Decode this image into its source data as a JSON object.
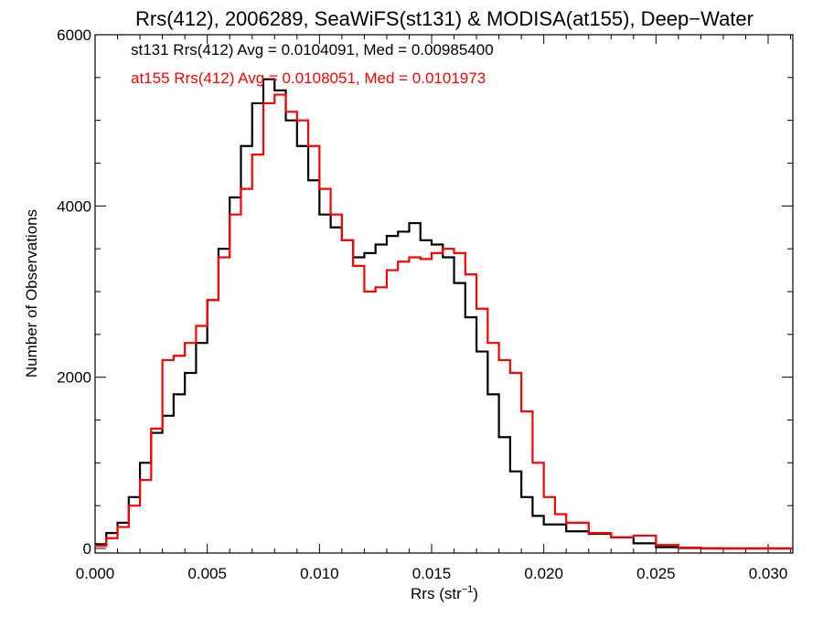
{
  "chart_data": {
    "type": "line",
    "title": "Rrs(412), 2006289, SeaWiFS(st131) & MODISA(at155), Deep−Water",
    "xlabel_main": "Rrs (str",
    "xlabel_sup": "−1",
    "xlabel_close": ")",
    "ylabel": "Number of Observations",
    "xlim": [
      0.0,
      0.0311
    ],
    "ylim": [
      0,
      6000
    ],
    "xticks": [
      0.0,
      0.005,
      0.01,
      0.015,
      0.02,
      0.025,
      0.03
    ],
    "xtick_labels": [
      "0.000",
      "0.005",
      "0.010",
      "0.015",
      "0.020",
      "0.025",
      "0.030"
    ],
    "yticks": [
      0,
      2000,
      4000,
      6000
    ],
    "ytick_labels": [
      "0",
      "2000",
      "4000",
      "6000"
    ],
    "grid": false,
    "legend_placement": "top-left",
    "series": [
      {
        "name": "st131 Rrs(412) Avg = 0.0104091, Med = 0.00985400",
        "color": "#000000",
        "x": [
          0.0,
          0.0005,
          0.001,
          0.0015,
          0.002,
          0.0025,
          0.003,
          0.0035,
          0.004,
          0.0045,
          0.005,
          0.0055,
          0.006,
          0.0065,
          0.007,
          0.0075,
          0.008,
          0.0085,
          0.009,
          0.0095,
          0.01,
          0.0105,
          0.011,
          0.0115,
          0.012,
          0.0125,
          0.013,
          0.0135,
          0.014,
          0.0145,
          0.015,
          0.0155,
          0.016,
          0.0165,
          0.017,
          0.0175,
          0.018,
          0.0185,
          0.019,
          0.0195,
          0.02,
          0.021,
          0.022,
          0.023,
          0.024,
          0.025,
          0.026,
          0.027,
          0.028,
          0.029,
          0.0311
        ],
        "y": [
          50,
          180,
          300,
          600,
          1000,
          1350,
          1550,
          1800,
          2050,
          2400,
          2900,
          3500,
          4100,
          4700,
          5200,
          5480,
          5350,
          5000,
          4700,
          4300,
          3900,
          3750,
          3600,
          3400,
          3450,
          3550,
          3650,
          3700,
          3800,
          3600,
          3550,
          3400,
          3100,
          2700,
          2300,
          1800,
          1300,
          900,
          600,
          380,
          280,
          200,
          170,
          130,
          60,
          15,
          5,
          0,
          0,
          0,
          0
        ]
      },
      {
        "name": "at155 Rrs(412) Avg = 0.0108051, Med = 0.0101973",
        "color": "#ff0000",
        "x": [
          0.0,
          0.0005,
          0.001,
          0.0015,
          0.002,
          0.0025,
          0.003,
          0.0035,
          0.004,
          0.0045,
          0.005,
          0.0055,
          0.006,
          0.0065,
          0.007,
          0.0075,
          0.008,
          0.0085,
          0.009,
          0.0095,
          0.01,
          0.0105,
          0.011,
          0.0115,
          0.012,
          0.0125,
          0.013,
          0.0135,
          0.014,
          0.0145,
          0.015,
          0.0155,
          0.016,
          0.0165,
          0.017,
          0.0175,
          0.018,
          0.0185,
          0.019,
          0.0195,
          0.02,
          0.0205,
          0.021,
          0.022,
          0.023,
          0.024,
          0.025,
          0.026,
          0.027,
          0.028,
          0.029,
          0.0311
        ],
        "y": [
          30,
          120,
          250,
          500,
          800,
          1400,
          2200,
          2250,
          2400,
          2600,
          2900,
          3400,
          3900,
          4200,
          4600,
          5200,
          5300,
          5100,
          5000,
          4700,
          4200,
          3900,
          3600,
          3300,
          3000,
          3050,
          3250,
          3350,
          3400,
          3380,
          3450,
          3500,
          3450,
          3200,
          2800,
          2400,
          2200,
          2050,
          1600,
          1000,
          600,
          400,
          300,
          180,
          130,
          150,
          40,
          10,
          3,
          0,
          0,
          0
        ]
      }
    ]
  }
}
